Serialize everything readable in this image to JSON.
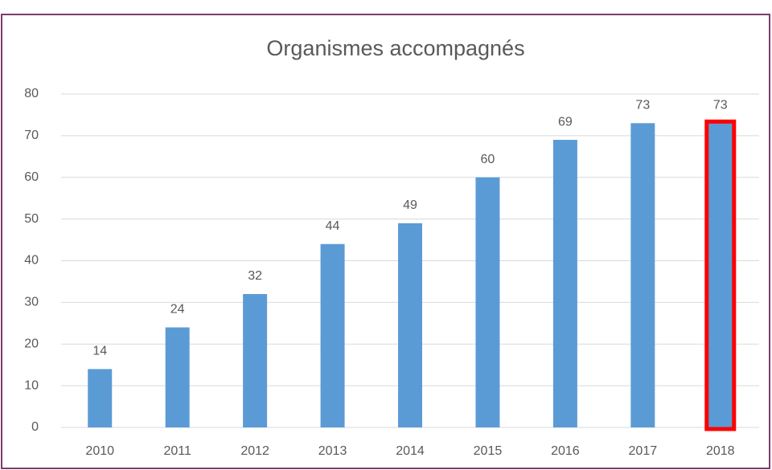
{
  "chart_data": {
    "type": "bar",
    "title": "Organismes accompagnés",
    "categories": [
      "2010",
      "2011",
      "2012",
      "2013",
      "2014",
      "2015",
      "2016",
      "2017",
      "2018"
    ],
    "values": [
      14,
      24,
      32,
      44,
      49,
      60,
      69,
      73,
      73
    ],
    "color": "#5b9bd5",
    "ylim": [
      0,
      80
    ],
    "yticks": [
      0,
      10,
      20,
      30,
      40,
      50,
      60,
      70,
      80
    ],
    "grid": true,
    "highlight": {
      "index": 8,
      "color": "#ff0000"
    }
  }
}
